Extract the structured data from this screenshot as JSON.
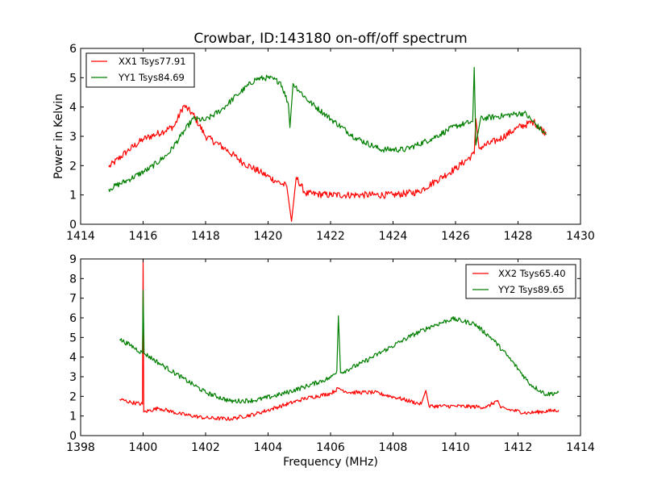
{
  "chart_data": [
    {
      "type": "line",
      "title": "Crowbar, ID:143180 on-off/off spectrum",
      "xlabel": "",
      "ylabel": "Power in Kelvin",
      "xlim": [
        1414,
        1430
      ],
      "ylim": [
        0,
        6
      ],
      "xticks": [
        "1414",
        "1416",
        "1418",
        "1420",
        "1422",
        "1424",
        "1426",
        "1428",
        "1430"
      ],
      "yticks": [
        "0",
        "1",
        "2",
        "3",
        "4",
        "5",
        "6"
      ],
      "grid": false,
      "legend_position": "top-left",
      "series": [
        {
          "name": "XX1 Tsys77.91",
          "color": "#ff0000",
          "noise": 0.12,
          "points": [
            [
              1414.9,
              1.95
            ],
            [
              1415.5,
              2.5
            ],
            [
              1416.0,
              2.9
            ],
            [
              1416.6,
              3.15
            ],
            [
              1417.0,
              3.35
            ],
            [
              1417.3,
              4.05
            ],
            [
              1417.6,
              3.75
            ],
            [
              1418.0,
              3.0
            ],
            [
              1418.6,
              2.6
            ],
            [
              1419.2,
              2.1
            ],
            [
              1419.8,
              1.75
            ],
            [
              1420.3,
              1.45
            ],
            [
              1420.6,
              1.3
            ],
            [
              1420.75,
              0.1
            ],
            [
              1420.9,
              1.6
            ],
            [
              1421.2,
              1.05
            ],
            [
              1422.0,
              1.0
            ],
            [
              1423.0,
              1.0
            ],
            [
              1424.0,
              1.0
            ],
            [
              1424.8,
              1.1
            ],
            [
              1425.4,
              1.5
            ],
            [
              1426.0,
              1.9
            ],
            [
              1426.6,
              2.4
            ],
            [
              1426.65,
              3.6
            ],
            [
              1426.75,
              2.6
            ],
            [
              1427.4,
              2.9
            ],
            [
              1428.0,
              3.3
            ],
            [
              1428.5,
              3.5
            ],
            [
              1428.9,
              3.1
            ]
          ]
        },
        {
          "name": "YY1 Tsys84.69",
          "color": "#007f00",
          "noise": 0.1,
          "points": [
            [
              1414.9,
              1.2
            ],
            [
              1415.5,
              1.5
            ],
            [
              1416.2,
              1.9
            ],
            [
              1416.8,
              2.4
            ],
            [
              1417.2,
              3.0
            ],
            [
              1417.6,
              3.6
            ],
            [
              1418.0,
              3.55
            ],
            [
              1418.5,
              3.9
            ],
            [
              1419.0,
              4.4
            ],
            [
              1419.6,
              4.95
            ],
            [
              1420.0,
              5.0
            ],
            [
              1420.4,
              4.85
            ],
            [
              1420.65,
              4.1
            ],
            [
              1420.7,
              3.3
            ],
            [
              1420.8,
              4.8
            ],
            [
              1421.3,
              4.2
            ],
            [
              1422.0,
              3.6
            ],
            [
              1422.8,
              2.95
            ],
            [
              1423.6,
              2.55
            ],
            [
              1424.4,
              2.55
            ],
            [
              1425.2,
              2.9
            ],
            [
              1426.0,
              3.35
            ],
            [
              1426.55,
              3.5
            ],
            [
              1426.6,
              5.35
            ],
            [
              1426.65,
              2.7
            ],
            [
              1426.8,
              3.6
            ],
            [
              1427.5,
              3.7
            ],
            [
              1428.2,
              3.8
            ],
            [
              1428.9,
              3.05
            ]
          ]
        }
      ]
    },
    {
      "type": "line",
      "title": "",
      "xlabel": "Frequency (MHz)",
      "ylabel": "",
      "xlim": [
        1398,
        1414
      ],
      "ylim": [
        0,
        9
      ],
      "xticks": [
        "1398",
        "1400",
        "1402",
        "1404",
        "1406",
        "1408",
        "1410",
        "1412",
        "1414"
      ],
      "yticks": [
        "0",
        "1",
        "2",
        "3",
        "4",
        "5",
        "6",
        "7",
        "8",
        "9"
      ],
      "grid": false,
      "legend_position": "top-right",
      "series": [
        {
          "name": "XX2 Tsys65.40",
          "color": "#ff0000",
          "noise": 0.1,
          "points": [
            [
              1399.25,
              1.85
            ],
            [
              1399.6,
              1.7
            ],
            [
              1399.98,
              1.6
            ],
            [
              1400.0,
              9.0
            ],
            [
              1400.02,
              1.2
            ],
            [
              1400.5,
              1.4
            ],
            [
              1401.2,
              1.1
            ],
            [
              1402.0,
              0.9
            ],
            [
              1402.8,
              0.85
            ],
            [
              1403.6,
              1.1
            ],
            [
              1404.4,
              1.5
            ],
            [
              1405.2,
              1.9
            ],
            [
              1406.0,
              2.15
            ],
            [
              1406.25,
              2.4
            ],
            [
              1406.6,
              2.2
            ],
            [
              1407.4,
              2.2
            ],
            [
              1408.2,
              1.9
            ],
            [
              1408.9,
              1.6
            ],
            [
              1409.05,
              2.3
            ],
            [
              1409.15,
              1.5
            ],
            [
              1410.0,
              1.5
            ],
            [
              1411.0,
              1.45
            ],
            [
              1411.35,
              1.8
            ],
            [
              1411.45,
              1.4
            ],
            [
              1412.3,
              1.15
            ],
            [
              1413.3,
              1.3
            ]
          ]
        },
        {
          "name": "YY2 Tsys89.65",
          "color": "#007f00",
          "noise": 0.12,
          "points": [
            [
              1399.25,
              4.9
            ],
            [
              1399.6,
              4.6
            ],
            [
              1399.98,
              4.2
            ],
            [
              1400.0,
              7.4
            ],
            [
              1400.03,
              4.2
            ],
            [
              1400.6,
              3.6
            ],
            [
              1401.3,
              2.9
            ],
            [
              1402.0,
              2.2
            ],
            [
              1402.8,
              1.75
            ],
            [
              1403.6,
              1.8
            ],
            [
              1404.4,
              2.1
            ],
            [
              1405.2,
              2.5
            ],
            [
              1406.0,
              2.95
            ],
            [
              1406.2,
              3.3
            ],
            [
              1406.25,
              6.1
            ],
            [
              1406.32,
              3.2
            ],
            [
              1407.0,
              3.7
            ],
            [
              1407.8,
              4.4
            ],
            [
              1408.6,
              5.1
            ],
            [
              1409.2,
              5.55
            ],
            [
              1409.9,
              5.95
            ],
            [
              1410.6,
              5.7
            ],
            [
              1411.2,
              4.9
            ],
            [
              1411.8,
              3.8
            ],
            [
              1412.4,
              2.6
            ],
            [
              1412.9,
              2.1
            ],
            [
              1413.3,
              2.2
            ]
          ]
        }
      ]
    }
  ]
}
